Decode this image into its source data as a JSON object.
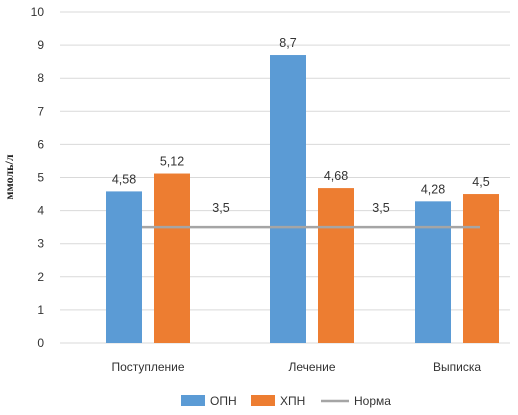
{
  "chart_data": {
    "type": "bar",
    "categories": [
      "Поступление",
      "Лечение",
      "Выписка"
    ],
    "series": [
      {
        "name": "ОПН",
        "values": [
          4.58,
          8.7,
          4.28
        ],
        "labels": [
          "4,58",
          "8,7",
          "4,28"
        ],
        "color": "#5b9bd5"
      },
      {
        "name": "ХПН",
        "values": [
          5.12,
          4.68,
          4.5
        ],
        "labels": [
          "5,12",
          "4,68",
          "4,5"
        ],
        "color": "#ed7d31"
      }
    ],
    "reference_line": {
      "name": "Норма",
      "value": 3.5,
      "labels": [
        "3,5",
        "3,5"
      ],
      "color": "#a5a5a5"
    },
    "ylabel": "ммоль/л",
    "xlabel": "",
    "ylim": [
      0,
      10
    ],
    "yticks": [
      "0",
      "1",
      "2",
      "3",
      "4",
      "5",
      "6",
      "7",
      "8",
      "9",
      "10"
    ],
    "grid": true,
    "legend_position": "bottom"
  }
}
